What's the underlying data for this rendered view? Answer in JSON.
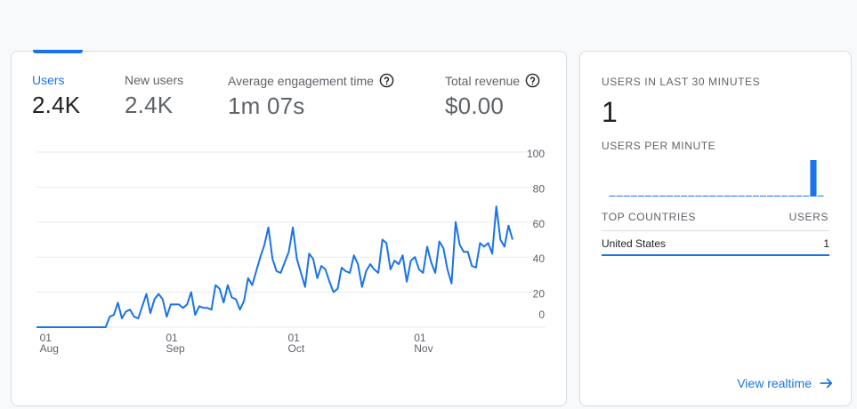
{
  "metrics": [
    {
      "label": "Users",
      "value": "2.4K",
      "active": true,
      "help": false
    },
    {
      "label": "New users",
      "value": "2.4K",
      "active": false,
      "help": false
    },
    {
      "label": "Average engagement time",
      "value": "1m 07s",
      "active": false,
      "help": true
    },
    {
      "label": "Total revenue",
      "value": "$0.00",
      "active": false,
      "help": true
    }
  ],
  "chart_data": {
    "type": "line",
    "x_ticks": [
      {
        "day": "01",
        "month": "Aug"
      },
      {
        "day": "01",
        "month": "Sep"
      },
      {
        "day": "01",
        "month": "Oct"
      },
      {
        "day": "01",
        "month": "Nov"
      }
    ],
    "y_ticks": [
      "100",
      "80",
      "60",
      "40",
      "20",
      "0"
    ],
    "ylim": [
      0,
      100
    ],
    "x_start": "2021-07-31",
    "series": [
      {
        "values": [
          0,
          0,
          0,
          0,
          0,
          0,
          0,
          0,
          0,
          0,
          0,
          0,
          0,
          0,
          0,
          0,
          0,
          0,
          6,
          7,
          14,
          5,
          9,
          10,
          6,
          5,
          12,
          19,
          8,
          16,
          19,
          16,
          6,
          13,
          13,
          13,
          11,
          13,
          20,
          7,
          12,
          11,
          11,
          10,
          24,
          22,
          14,
          24,
          17,
          16,
          10,
          15,
          28,
          24,
          32,
          40,
          47,
          57,
          39,
          32,
          31,
          37,
          43,
          57,
          39,
          31,
          23,
          42,
          39,
          28,
          35,
          33,
          26,
          20,
          22,
          34,
          32,
          31,
          41,
          36,
          23,
          32,
          36,
          33,
          31,
          50,
          48,
          33,
          38,
          36,
          41,
          26,
          38,
          40,
          33,
          31,
          46,
          37,
          31,
          49,
          45,
          33,
          25,
          60,
          47,
          43,
          43,
          35,
          34,
          48,
          46,
          48,
          42,
          69,
          50,
          46,
          58,
          50
        ]
      }
    ]
  },
  "realtime": {
    "users_label": "USERS IN LAST 30 MINUTES",
    "users_value": "1",
    "per_minute_label": "USERS PER MINUTE",
    "per_minute": [
      0,
      0,
      0,
      0,
      0,
      0,
      0,
      0,
      0,
      0,
      0,
      0,
      0,
      0,
      0,
      0,
      0,
      0,
      0,
      0,
      0,
      0,
      0,
      0,
      0,
      0,
      0,
      0,
      1,
      0
    ],
    "top_countries_label": "TOP COUNTRIES",
    "users_col_label": "USERS",
    "countries": [
      {
        "name": "United States",
        "users": "1"
      }
    ],
    "view_link": "View realtime"
  },
  "colors": {
    "accent": "#1a73e8"
  }
}
